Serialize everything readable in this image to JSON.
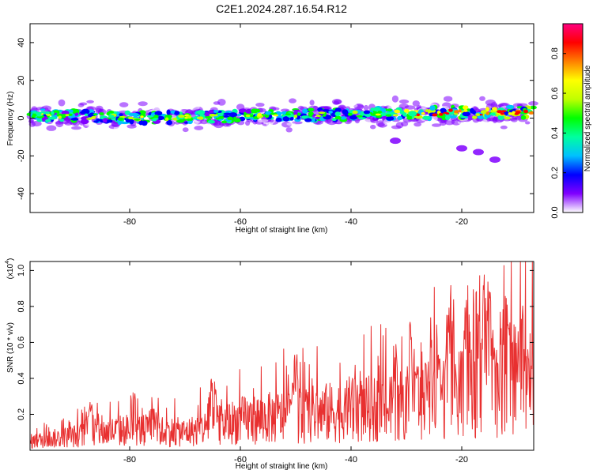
{
  "figure": {
    "title": "C2E1.2024.287.16.54.R12"
  },
  "chart_data": [
    {
      "type": "heatmap",
      "xlabel": "Height of straight line (km)",
      "ylabel": "Frequency (Hz)",
      "xlim": [
        -98,
        -7
      ],
      "ylim": [
        -50,
        50
      ],
      "xticks": [
        -80,
        -60,
        -40,
        -20
      ],
      "yticks": [
        40,
        20,
        0,
        -20,
        -40
      ],
      "colorbar": {
        "label": "Normalized spectral amplitude",
        "range": [
          0,
          0.95
        ],
        "ticks": [
          "0.0",
          "0.2",
          "0.4",
          "0.6",
          "0.8"
        ],
        "colors": [
          "#ffffff",
          "#8000ff",
          "#0000ff",
          "#00c0ff",
          "#00ffa0",
          "#00ff00",
          "#c0ff00",
          "#ffff00",
          "#ff8000",
          "#ff0000",
          "#ff0080"
        ]
      },
      "band_center_hz": [
        [
          -98,
          2
        ],
        [
          -80,
          0
        ],
        [
          -60,
          1
        ],
        [
          -40,
          2
        ],
        [
          -20,
          3
        ],
        [
          -7,
          3
        ]
      ],
      "isolated_features": [
        {
          "x": -32,
          "y": -12,
          "value": 0.12
        },
        {
          "x": -17,
          "y": -18,
          "value": 0.1
        },
        {
          "x": -14,
          "y": -22,
          "value": 0.08
        },
        {
          "x": -20,
          "y": -16,
          "value": 0.05
        }
      ]
    },
    {
      "type": "line",
      "xlabel": "Height of straight line (km)",
      "ylabel": "SNR (10 * v/v)",
      "yscale_note": "(x10",
      "yscale_exp": "4",
      "xlim": [
        -98,
        -7
      ],
      "ylim": [
        0,
        1.05
      ],
      "xticks": [
        -80,
        -60,
        -40,
        -20
      ],
      "yticks": [
        "0.2",
        "0.4",
        "0.6",
        "0.8",
        "1.0"
      ],
      "color": "#e83030",
      "trend": [
        [
          -98,
          0.06
        ],
        [
          -80,
          0.14
        ],
        [
          -70,
          0.12
        ],
        [
          -60,
          0.2
        ],
        [
          -45,
          0.25
        ],
        [
          -30,
          0.3
        ],
        [
          -20,
          0.38
        ],
        [
          -15,
          0.42
        ],
        [
          -7,
          0.55
        ]
      ],
      "peaks": [
        [
          -87,
          0.3
        ],
        [
          -76,
          0.3
        ],
        [
          -65,
          0.45
        ],
        [
          -50,
          0.5
        ],
        [
          -40,
          0.55
        ],
        [
          -32,
          0.62
        ],
        [
          -29,
          0.74
        ],
        [
          -25,
          1.0
        ],
        [
          -22,
          0.95
        ],
        [
          -19,
          0.97
        ],
        [
          -16,
          1.02
        ],
        [
          -15,
          0.95
        ],
        [
          -12,
          1.03
        ],
        [
          -9,
          0.95
        ]
      ]
    }
  ]
}
